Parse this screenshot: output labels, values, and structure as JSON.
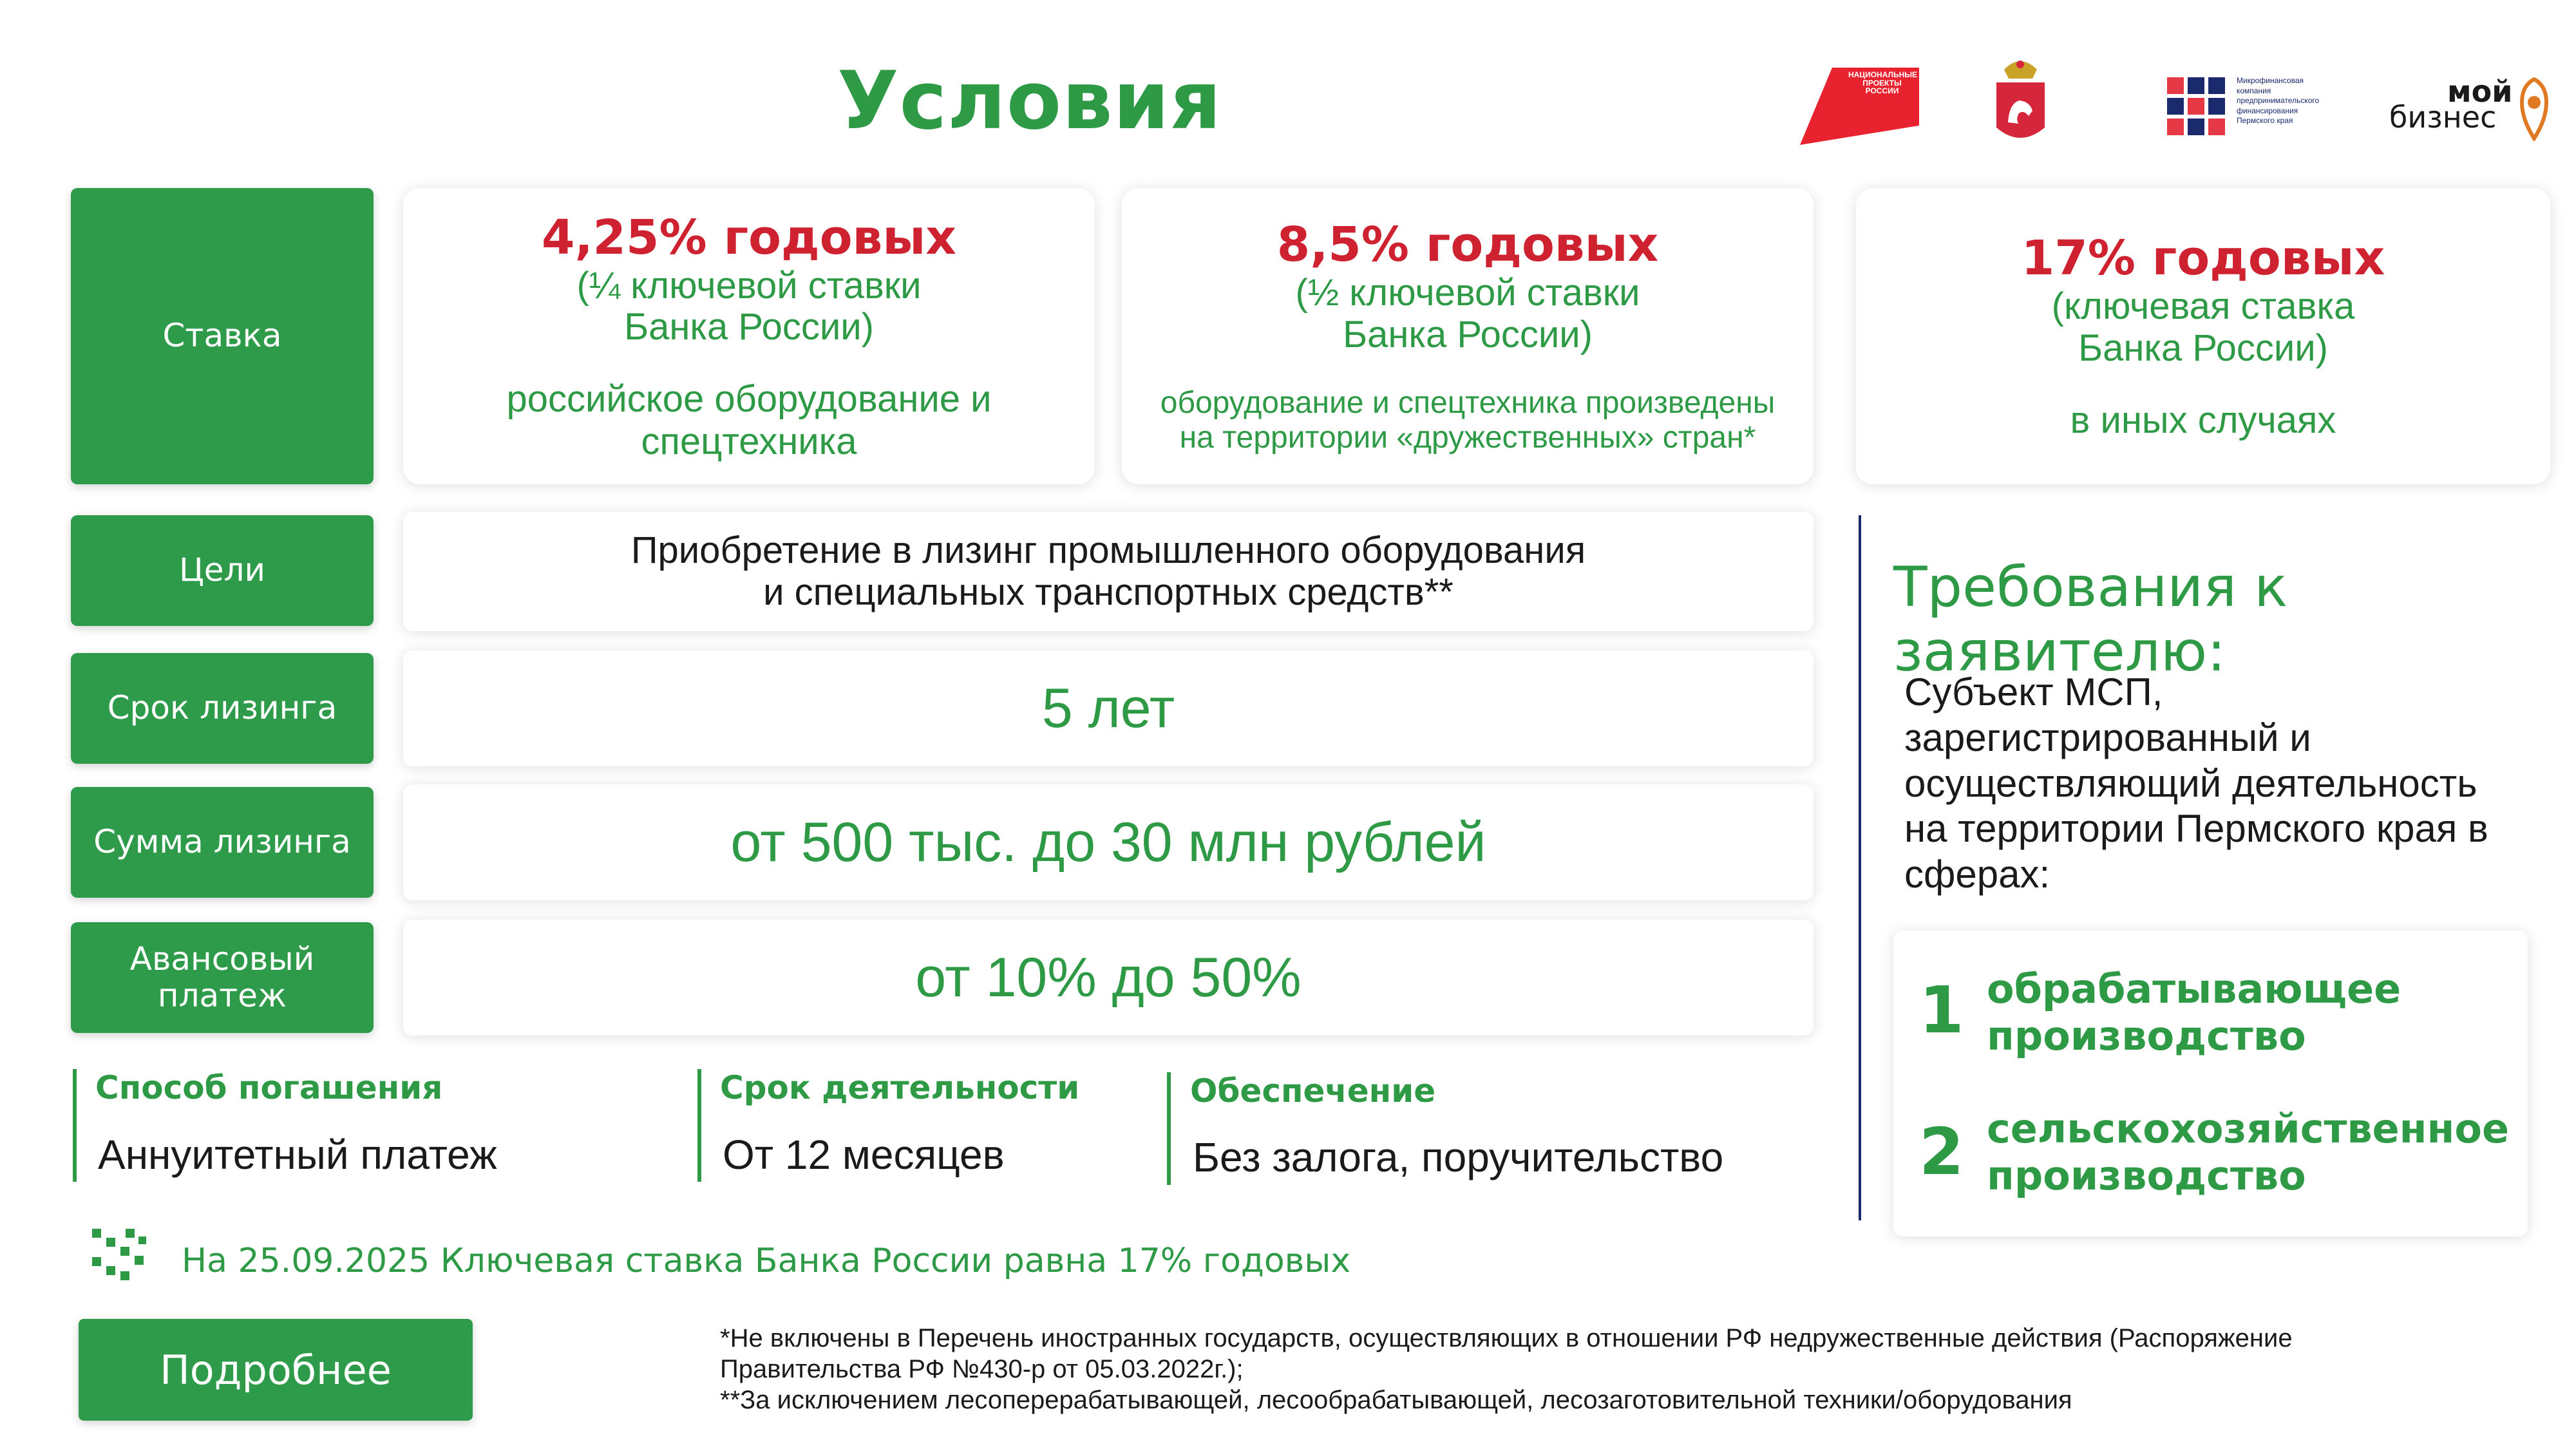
{
  "page": {
    "title": "Условия"
  },
  "logos": {
    "national_projects": "НАЦИОНАЛЬНЫЕ ПРОЕКТЫ РОССИИ",
    "microfinance": [
      "Микрофинансовая",
      "компания",
      "предпринимательского",
      "финансирования",
      "Пермского края"
    ],
    "moi": "мой",
    "biznes": "бизнес"
  },
  "labels": {
    "rate": "Ставка",
    "goals": "Цели",
    "term": "Срок лизинга",
    "amount": "Сумма лизинга",
    "advance": "Авансовый платеж"
  },
  "rates": [
    {
      "value": "4,25% годовых",
      "sub1": "(¼ ключевой ставки",
      "sub2": "Банка России)",
      "desc1": "российское оборудование и",
      "desc2": "спецтехника"
    },
    {
      "value": "8,5% годовых",
      "sub1": "(½ ключевой ставки",
      "sub2": "Банка России)",
      "desc1": "оборудование и спецтехника произведены",
      "desc2": "на территории «дружественных» стран*"
    },
    {
      "value": "17% годовых",
      "sub1": "(ключевая ставка",
      "sub2": "Банка России)",
      "desc1": "в иных случаях",
      "desc2": ""
    }
  ],
  "goals": {
    "line1": "Приобретение в лизинг промышленного оборудования",
    "line2": "и специальных транспортных средств**"
  },
  "term": {
    "value": "5 лет"
  },
  "amount": {
    "value": "от 500 тыс. до 30 млн рублей"
  },
  "advance": {
    "value": "от 10% до 50%"
  },
  "bottom_columns": [
    {
      "title": "Способ погашения",
      "value": "Аннуитетный платеж"
    },
    {
      "title": "Срок деятельности",
      "value": "От 12 месяцев"
    },
    {
      "title": "Обеспечение",
      "value": "Без залога, поручительство"
    }
  ],
  "requirements": {
    "title": "Требования к заявителю:",
    "lines": [
      "Субъект МСП,",
      "зарегистрированный и",
      "осуществляющий деятельность",
      "на территории Пермского края в",
      "сферах:"
    ],
    "spheres": [
      {
        "num": "1",
        "line1": "обрабатывающее",
        "line2": "производство"
      },
      {
        "num": "2",
        "line1": "сельскохозяйственное",
        "line2": "производство"
      }
    ]
  },
  "key_rate_note": "На 25.09.2025 Ключевая ставка Банка России равна 17% годовых",
  "details_button": "Подробнее",
  "footnotes": {
    "f1_line1": "*Не включены в Перечень иностранных государств, осуществляющих в отношении РФ недружественные действия (Распоряжение",
    "f1_line2": "Правительства РФ №430-р от 05.03.2022г.);",
    "f2": "**За исключением лесоперерабатывающей, лесообрабатывающей, лесозаготовительной техники/оборудования"
  },
  "colors": {
    "green": "#2e9a46",
    "red": "#cf2230",
    "navy": "#1a2a6c"
  }
}
